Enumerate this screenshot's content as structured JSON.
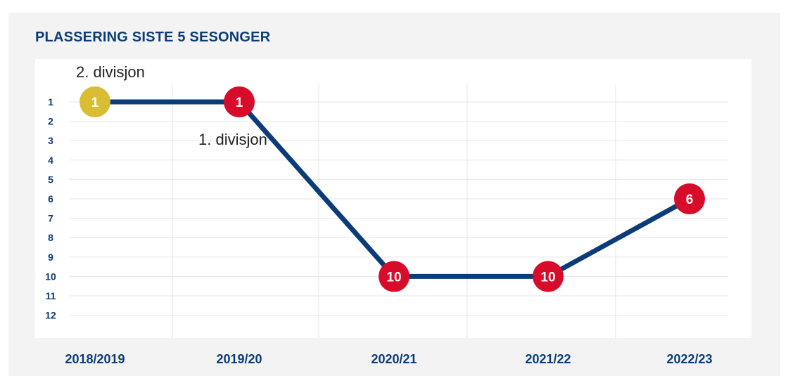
{
  "chart_data": {
    "type": "line",
    "title": "PLASSERING SISTE 5 SESONGER",
    "categories": [
      "2018/2019",
      "2019/20",
      "2020/21",
      "2021/22",
      "2022/23"
    ],
    "values": [
      1,
      1,
      10,
      10,
      6
    ],
    "point_labels": [
      "1",
      "1",
      "10",
      "10",
      "6"
    ],
    "point_divisions": [
      "2. divisjon",
      "1. divisjon",
      "1. divisjon",
      "1. divisjon",
      "1. divisjon"
    ],
    "y_ticks": [
      "1",
      "2",
      "3",
      "4",
      "5",
      "6",
      "7",
      "8",
      "9",
      "10",
      "11",
      "12"
    ],
    "ylim": [
      1,
      12
    ],
    "y_inverted": true,
    "grid": true,
    "annotations": [
      {
        "text": "2. divisjon",
        "category": "2018/2019"
      },
      {
        "text": "1. divisjon",
        "category": "2019/20"
      }
    ],
    "colors": {
      "line": "#0b3c78",
      "marker_2_divisjon": "#d9bd34",
      "marker_1_divisjon": "#d60c2a",
      "axis_text": "#0b3c78",
      "grid": "#e6e6e6"
    }
  }
}
